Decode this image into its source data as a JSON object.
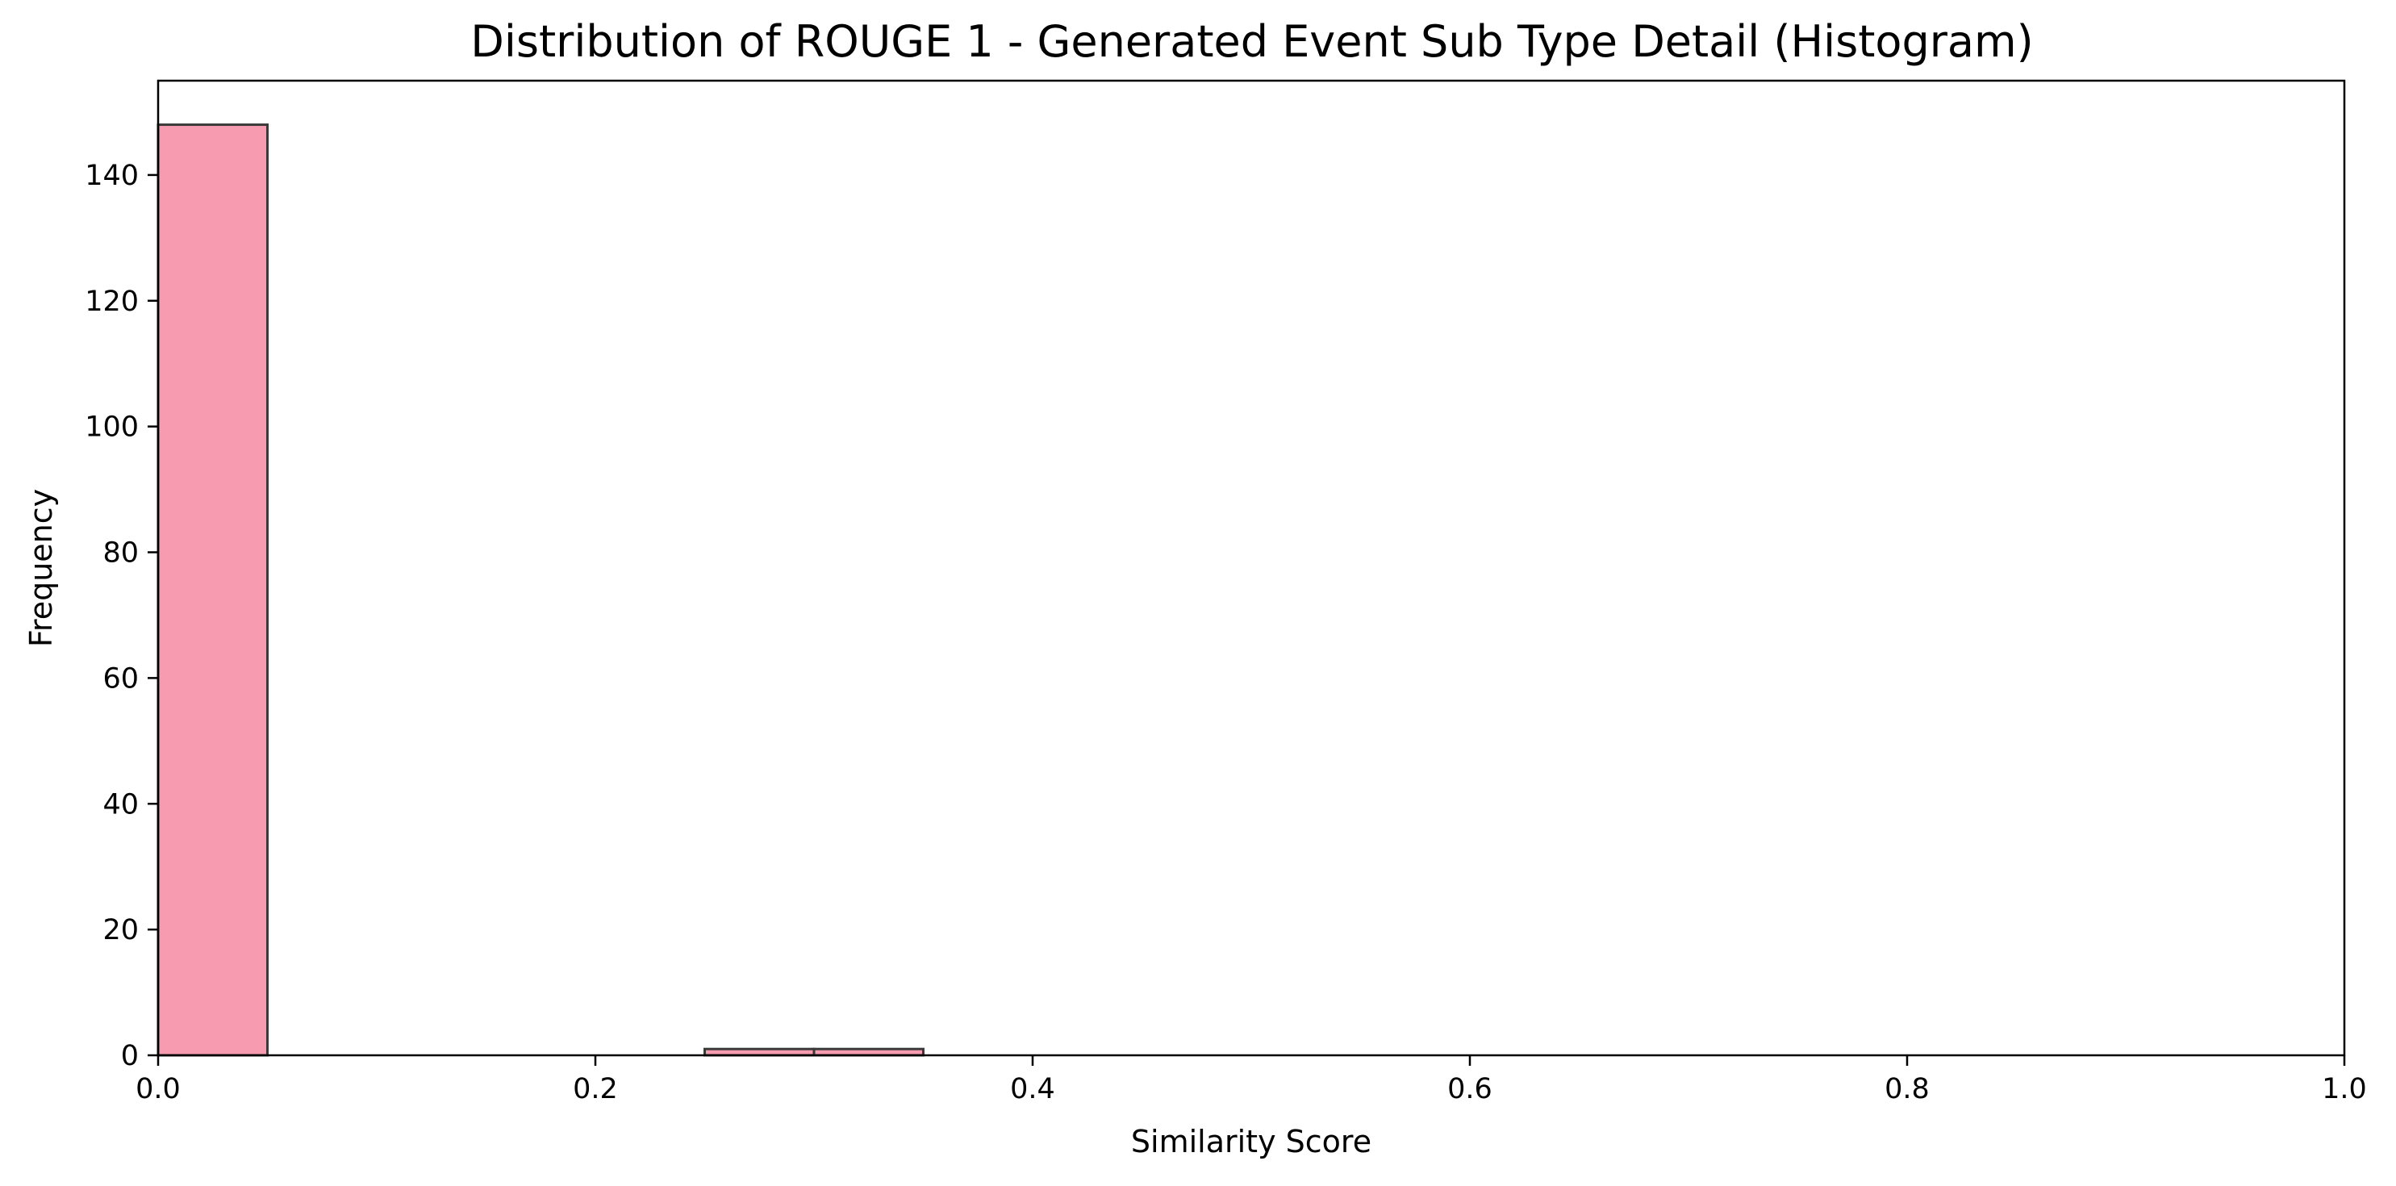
{
  "chart_data": {
    "type": "bar",
    "title": "Distribution of ROUGE 1 - Generated Event Sub Type Detail (Histogram)",
    "xlabel": "Similarity Score",
    "ylabel": "Frequency",
    "xlim": [
      0.0,
      1.0
    ],
    "ylim": [
      0,
      155
    ],
    "grid": false,
    "bins": [
      {
        "x0": 0.0,
        "x1": 0.05,
        "count": 148
      },
      {
        "x0": 0.25,
        "x1": 0.3,
        "count": 1
      },
      {
        "x0": 0.3,
        "x1": 0.35,
        "count": 1
      }
    ],
    "x_ticks": [
      0.0,
      0.2,
      0.4,
      0.6,
      0.8,
      1.0
    ],
    "x_tick_labels": [
      "0.0",
      "0.2",
      "0.4",
      "0.6",
      "0.8",
      "1.0"
    ],
    "y_ticks": [
      0,
      20,
      40,
      60,
      80,
      100,
      120,
      140
    ],
    "y_tick_labels": [
      "0",
      "20",
      "40",
      "60",
      "80",
      "100",
      "120",
      "140"
    ],
    "bar_color": "#f79cb0",
    "bar_edge_color": "#3a3a3a"
  }
}
